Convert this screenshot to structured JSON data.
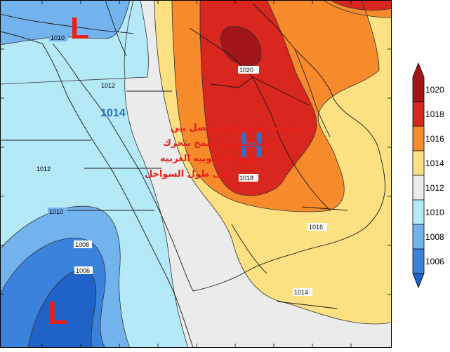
{
  "map": {
    "isobar_labels": [
      "1010",
      "1012",
      "1020",
      "1012",
      "1018",
      "1010",
      "1008",
      "1006",
      "1016",
      "1014"
    ],
    "high_center": "H",
    "low_centers": [
      "L",
      "L"
    ],
    "annotation_value": "1014",
    "annotation_lines": [
      "قيم ضغط مرتفعه تفصل بين",
      "المنخفين ولايسمح بتحرك",
      "الرياح الجنوبيه الغربيه",
      "على طول السواحل"
    ]
  },
  "legend": {
    "levels": [
      "1006",
      "1008",
      "1010",
      "1012",
      "1014",
      "1016",
      "1018",
      "1020"
    ],
    "colors": {
      "below_1006": "#1f62c8",
      "1006_1008": "#3b82dd",
      "1008_1010": "#72b3ee",
      "1010_1012": "#b4e9f8",
      "1012_1014": "#ebebeb",
      "1014_1016": "#fde082",
      "1016_1018": "#f78a2b",
      "1018_1020": "#d9261e",
      "above_1020": "#a2161a"
    }
  },
  "colors": {
    "pressure_label_blue": "#2f6fc8",
    "annotation_red": "#e8201a",
    "low_marker_red": "#e8201a",
    "high_marker_blue": "#2f6fc8"
  }
}
